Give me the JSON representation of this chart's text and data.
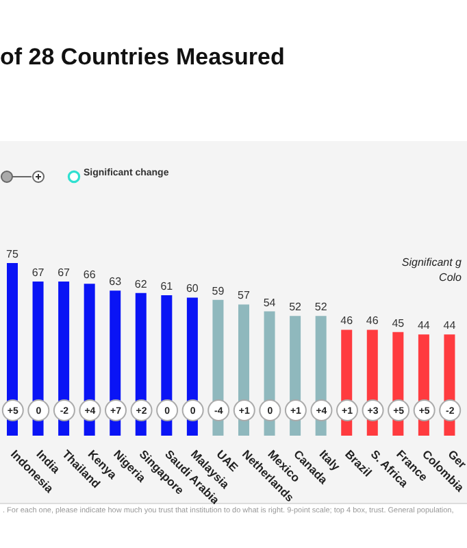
{
  "chart_data": {
    "type": "bar",
    "title": "of 28 Countries Measured",
    "categories": [
      "Indonesia",
      "India",
      "Thailand",
      "Kenya",
      "Nigeria",
      "Singapore",
      "Saudi Arabia",
      "Malaysia",
      "UAE",
      "Netherlands",
      "Mexico",
      "Canada",
      "Italy",
      "Brazil",
      "S. Africa",
      "France",
      "Colombia",
      "Ger"
    ],
    "values": [
      75,
      67,
      67,
      66,
      63,
      62,
      61,
      60,
      59,
      57,
      54,
      52,
      52,
      46,
      46,
      45,
      44,
      44
    ],
    "colors": [
      "#0a14f5",
      "#0a14f5",
      "#0a14f5",
      "#0a14f5",
      "#0a14f5",
      "#0a14f5",
      "#0a14f5",
      "#0a14f5",
      "#8fb8bd",
      "#8fb8bd",
      "#8fb8bd",
      "#8fb8bd",
      "#8fb8bd",
      "#ff3b3f",
      "#ff3b3f",
      "#ff3b3f",
      "#ff3b3f",
      "#ff3b3f"
    ],
    "data_labels": true,
    "annotations": [
      "Significant change",
      "Significant g",
      "Colo",
      ". For each one, please indicate how much you trust that institution to do what is right. 9-point scale; top 4 box, trust. General population,",
      {
        "text": "+5",
        "x": "Indonesia",
        "y": 11
      },
      {
        "text": "0",
        "x": "India",
        "y": 11
      },
      {
        "text": "-2",
        "x": "Thailand",
        "y": 11
      },
      {
        "text": "+4",
        "x": "Kenya",
        "y": 11
      },
      {
        "text": "+7",
        "x": "Nigeria",
        "y": 11
      },
      {
        "text": "+2",
        "x": "Singapore",
        "y": 11
      },
      {
        "text": "0",
        "x": "Saudi Arabia",
        "y": 11
      },
      {
        "text": "0",
        "x": "Malaysia",
        "y": 11
      },
      {
        "text": "-4",
        "x": "UAE",
        "y": 11
      },
      {
        "text": "+1",
        "x": "Netherlands",
        "y": 11
      },
      {
        "text": "0",
        "x": "Mexico",
        "y": 11
      },
      {
        "text": "+1",
        "x": "Canada",
        "y": 11
      },
      {
        "text": "+4",
        "x": "Italy",
        "y": 11
      },
      {
        "text": "+1",
        "x": "Brazil",
        "y": 11
      },
      {
        "text": "+3",
        "x": "S. Africa",
        "y": 11
      },
      {
        "text": "+5",
        "x": "France",
        "y": 11
      },
      {
        "text": "+5",
        "x": "Colombia",
        "y": 11
      },
      {
        "text": "-2",
        "x": "Ger",
        "y": 11
      }
    ]
  }
}
